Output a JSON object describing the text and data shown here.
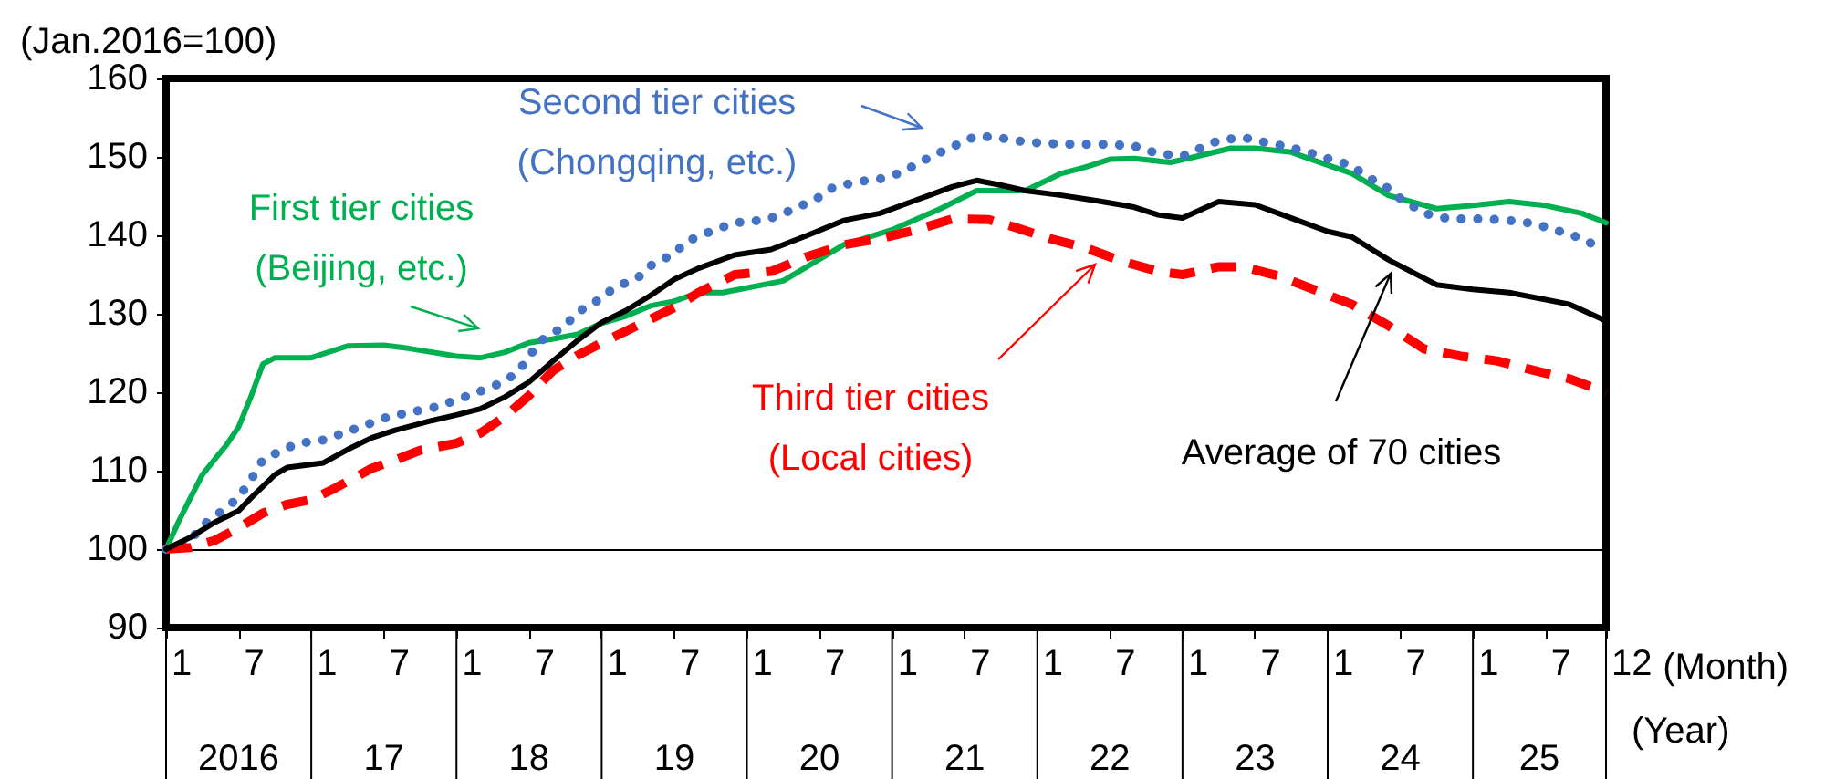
{
  "chart_data": {
    "type": "line",
    "ylabel": "(Jan.2016=100)",
    "xlabel": "(Month)",
    "annotations": [
      "2016",
      "17",
      "18",
      "19",
      "20",
      "21",
      "22",
      "23",
      "24",
      "25",
      "(Year)"
    ],
    "xlim": [
      "2016-01",
      "2025-12"
    ],
    "xticks": [
      {
        "value": "2016-01",
        "label": "1"
      },
      {
        "value": "2016-07",
        "label": "7"
      },
      {
        "value": "2017-01",
        "label": "1"
      },
      {
        "value": "2017-07",
        "label": "7"
      },
      {
        "value": "2018-01",
        "label": "1"
      },
      {
        "value": "2018-07",
        "label": "7"
      },
      {
        "value": "2019-01",
        "label": "1"
      },
      {
        "value": "2019-07",
        "label": "7"
      },
      {
        "value": "2020-01",
        "label": "1"
      },
      {
        "value": "2020-07",
        "label": "7"
      },
      {
        "value": "2021-01",
        "label": "1"
      },
      {
        "value": "2021-07",
        "label": "7"
      },
      {
        "value": "2022-01",
        "label": "1"
      },
      {
        "value": "2022-07",
        "label": "7"
      },
      {
        "value": "2023-01",
        "label": "1"
      },
      {
        "value": "2023-07",
        "label": "7"
      },
      {
        "value": "2024-01",
        "label": "1"
      },
      {
        "value": "2024-07",
        "label": "7"
      },
      {
        "value": "2025-01",
        "label": "1"
      },
      {
        "value": "2025-07",
        "label": "7"
      },
      {
        "value": "2025-12",
        "label": "12"
      }
    ],
    "ylim": [
      90,
      160
    ],
    "yticks": [
      90,
      100,
      110,
      120,
      130,
      140,
      150,
      160
    ],
    "grid": false,
    "marker": "none",
    "ref_lines": [
      {
        "axis": "y",
        "value": 100,
        "color": "#000000"
      }
    ],
    "series": [
      {
        "name": "First tier cities\n(Beijing, etc.)",
        "color": "#00b050",
        "line_style": "solid",
        "x": [
          "2016-01",
          "2016-02",
          "2016-03",
          "2016-04",
          "2016-05",
          "2016-06",
          "2016-07",
          "2016-08",
          "2016-09",
          "2016-10",
          "2017-01",
          "2017-04",
          "2017-07",
          "2017-09",
          "2017-11",
          "2018-01",
          "2018-03",
          "2018-05",
          "2018-07",
          "2018-09",
          "2018-11",
          "2019-01",
          "2019-03",
          "2019-05",
          "2019-07",
          "2019-09",
          "2019-11",
          "2020-04",
          "2020-09",
          "2021-01",
          "2021-05",
          "2021-08",
          "2021-12",
          "2022-03",
          "2022-05",
          "2022-07",
          "2022-09",
          "2022-12",
          "2023-02",
          "2023-05",
          "2023-07",
          "2023-10",
          "2023-12",
          "2024-03",
          "2024-06",
          "2024-10",
          "2025-01",
          "2025-04",
          "2025-07",
          "2025-10",
          "2025-12"
        ],
        "values": [
          100,
          103.4,
          106.5,
          109.5,
          111.4,
          113.3,
          115.6,
          119.4,
          123.6,
          124.4,
          124.4,
          125.9,
          126,
          125.6,
          125.1,
          124.6,
          124.4,
          125.1,
          126.3,
          126.8,
          127.4,
          128.8,
          129.7,
          131,
          131.6,
          132.7,
          132.7,
          134.2,
          138.8,
          140.7,
          143.4,
          145.7,
          145.7,
          147.9,
          148.7,
          149.7,
          149.8,
          149.3,
          150,
          151.1,
          151.1,
          150.6,
          149.5,
          147.9,
          145.1,
          143.4,
          143.8,
          144.3,
          143.8,
          142.8,
          141.6
        ]
      },
      {
        "name": "Second tier cities\n(Chongqing, etc.)",
        "color": "#4472c4",
        "line_style": "dotted",
        "x": [
          "2016-01",
          "2016-03",
          "2016-04",
          "2016-06",
          "2016-07",
          "2016-08",
          "2016-09",
          "2016-11",
          "2016-12",
          "2017-02",
          "2017-04",
          "2017-06",
          "2017-07",
          "2017-09",
          "2017-11",
          "2018-01",
          "2018-02",
          "2018-04",
          "2018-06",
          "2018-07",
          "2018-08",
          "2018-10",
          "2018-11",
          "2019-01",
          "2019-02",
          "2019-04",
          "2019-05",
          "2019-07",
          "2019-08",
          "2019-10",
          "2019-12",
          "2020-02",
          "2020-03",
          "2020-05",
          "2020-07",
          "2020-08",
          "2020-10",
          "2020-12",
          "2021-02",
          "2021-03",
          "2021-05",
          "2021-07",
          "2021-08",
          "2021-10",
          "2021-12",
          "2022-02",
          "2022-04",
          "2022-07",
          "2022-09",
          "2022-11",
          "2023-01",
          "2023-02",
          "2023-04",
          "2023-06",
          "2023-07",
          "2023-09",
          "2023-11",
          "2024-01",
          "2024-03",
          "2024-04",
          "2024-06",
          "2024-07",
          "2024-09",
          "2024-11",
          "2025-02",
          "2025-04",
          "2025-06",
          "2025-08",
          "2025-10",
          "2025-11"
        ],
        "values": [
          100,
          101.1,
          103,
          105.3,
          106.6,
          108.8,
          111.4,
          112.9,
          113.5,
          113.9,
          115,
          116.1,
          116.7,
          117.4,
          118,
          119,
          119.6,
          120.7,
          122.4,
          124.6,
          126.6,
          128.5,
          130.2,
          132,
          133.3,
          134.6,
          136.1,
          137.7,
          139.2,
          140.5,
          141.6,
          141.9,
          142.2,
          143.4,
          144.9,
          146,
          146.8,
          147.2,
          148.1,
          149.1,
          150.6,
          152,
          152.7,
          152.4,
          151.9,
          151.7,
          151.6,
          151.6,
          151.4,
          150.4,
          150.1,
          150.8,
          152.1,
          152.5,
          152.1,
          151.5,
          150.8,
          149.8,
          148.9,
          147.7,
          146,
          144.7,
          142.8,
          142.1,
          142.1,
          141.9,
          141.5,
          140.6,
          139.6,
          138.8
        ]
      },
      {
        "name": "Third tier cities\n(Local cities)",
        "color": "#ff0000",
        "line_style": "dashed",
        "x": [
          "2016-01",
          "2016-03",
          "2016-05",
          "2016-07",
          "2016-09",
          "2016-11",
          "2017-01",
          "2017-03",
          "2017-06",
          "2017-08",
          "2017-10",
          "2018-01",
          "2018-03",
          "2018-05",
          "2018-07",
          "2018-09",
          "2018-11",
          "2019-01",
          "2019-03",
          "2019-05",
          "2019-07",
          "2019-09",
          "2019-12",
          "2020-03",
          "2020-06",
          "2020-09",
          "2020-12",
          "2021-03",
          "2021-06",
          "2021-09",
          "2021-11",
          "2022-02",
          "2022-05",
          "2022-08",
          "2022-11",
          "2023-01",
          "2023-04",
          "2023-06",
          "2023-09",
          "2023-12",
          "2024-03",
          "2024-06",
          "2024-09",
          "2024-12",
          "2025-03",
          "2025-06",
          "2025-09",
          "2025-12"
        ],
        "values": [
          100,
          100.2,
          101.1,
          102.7,
          104.6,
          105.7,
          106.3,
          107.8,
          110.3,
          111.4,
          112.6,
          113.5,
          114.8,
          116.9,
          119.6,
          122.8,
          124.7,
          126.3,
          127.8,
          129.3,
          130.8,
          132.7,
          135,
          135.4,
          137.3,
          138.8,
          139.6,
          140.7,
          142.1,
          142,
          141.1,
          139.6,
          138.4,
          136.7,
          135.4,
          135,
          136,
          136,
          134.8,
          133,
          131.2,
          128.5,
          125.5,
          124.6,
          124,
          122.8,
          121.7,
          120
        ]
      },
      {
        "name": "Average of 70 cities",
        "color": "#000000",
        "line_style": "solid",
        "x": [
          "2016-01",
          "2016-03",
          "2016-05",
          "2016-07",
          "2016-08",
          "2016-10",
          "2016-11",
          "2017-02",
          "2017-04",
          "2017-06",
          "2017-08",
          "2017-11",
          "2018-01",
          "2018-03",
          "2018-05",
          "2018-07",
          "2018-09",
          "2018-11",
          "2019-01",
          "2019-03",
          "2019-05",
          "2019-07",
          "2019-09",
          "2019-12",
          "2020-03",
          "2020-06",
          "2020-09",
          "2020-12",
          "2021-03",
          "2021-06",
          "2021-08",
          "2021-10",
          "2021-12",
          "2022-03",
          "2022-06",
          "2022-09",
          "2022-11",
          "2023-01",
          "2023-04",
          "2023-07",
          "2023-10",
          "2024-01",
          "2024-03",
          "2024-06",
          "2024-10",
          "2025-01",
          "2025-04",
          "2025-09",
          "2025-12"
        ],
        "values": [
          100,
          101.5,
          103.4,
          104.9,
          106.5,
          109.5,
          110.4,
          111,
          112.7,
          114.2,
          115.2,
          116.4,
          117.1,
          117.9,
          119.4,
          121.3,
          124,
          126.6,
          128.9,
          130.4,
          132.3,
          134.4,
          135.8,
          137.5,
          138.2,
          140,
          141.9,
          142.8,
          144.5,
          146.2,
          147,
          146.4,
          145.7,
          145.1,
          144.4,
          143.6,
          142.6,
          142.2,
          144.3,
          143.9,
          142.2,
          140.5,
          139.8,
          136.9,
          133.7,
          133.1,
          132.7,
          131.2,
          129.1
        ]
      }
    ]
  }
}
